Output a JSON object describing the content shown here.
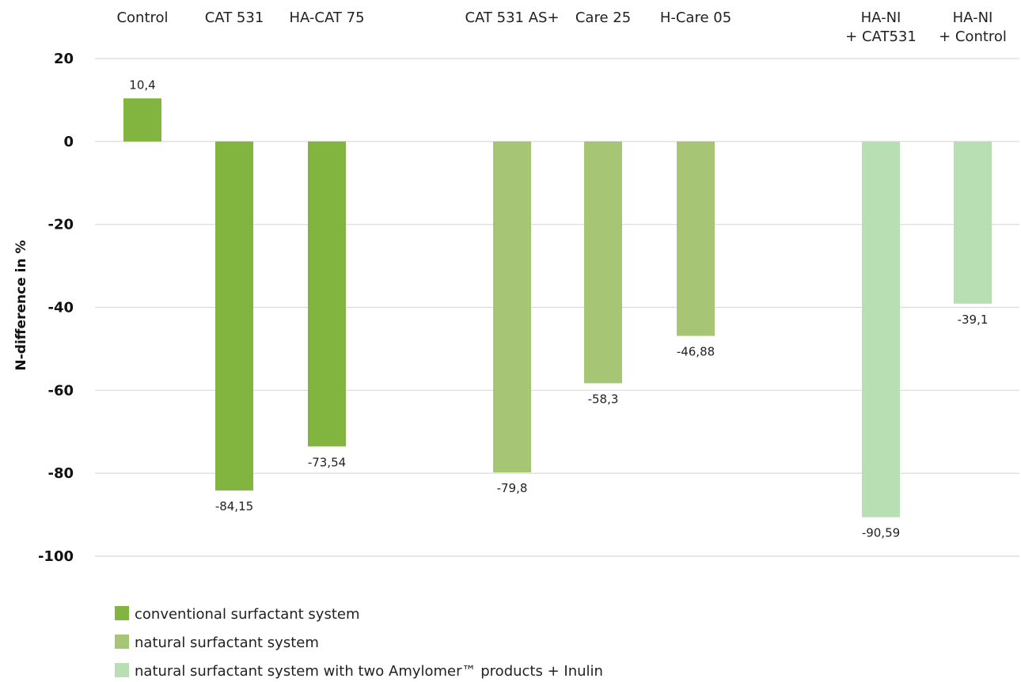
{
  "chart_data": {
    "type": "bar",
    "title": "",
    "xlabel": "",
    "ylabel": "N-difference in %",
    "ylim": [
      -100,
      20
    ],
    "yticks": [
      20,
      0,
      -20,
      -40,
      -60,
      -80,
      -100
    ],
    "grid": true,
    "legend_position": "bottom-left",
    "categories": [
      {
        "lines": [
          "Control"
        ],
        "value": 10.4,
        "value_label": "10,4",
        "group": 0
      },
      {
        "lines": [
          "CAT 531"
        ],
        "value": -84.15,
        "value_label": "-84,15",
        "group": 0
      },
      {
        "lines": [
          "HA-CAT 75"
        ],
        "value": -73.54,
        "value_label": "-73,54",
        "group": 0
      },
      {
        "lines": [
          "CAT 531 AS+"
        ],
        "value": -79.8,
        "value_label": "-79,8",
        "group": 1
      },
      {
        "lines": [
          "Care 25"
        ],
        "value": -58.3,
        "value_label": "-58,3",
        "group": 1
      },
      {
        "lines": [
          "H-Care 05"
        ],
        "value": -46.88,
        "value_label": "-46,88",
        "group": 1
      },
      {
        "lines": [
          "HA-NI",
          "+ CAT531"
        ],
        "value": -90.59,
        "value_label": "-90,59",
        "group": 2
      },
      {
        "lines": [
          "HA-NI",
          "+ Control"
        ],
        "value": -39.1,
        "value_label": "-39,1",
        "group": 2
      }
    ],
    "legend": [
      {
        "label": "conventional surfactant system",
        "color": "#82b440"
      },
      {
        "label": "natural surfactant system",
        "color": "#a6c575"
      },
      {
        "label": "natural surfactant system with two Amylomer™ products + Inulin",
        "color": "#b8deb3"
      }
    ]
  }
}
